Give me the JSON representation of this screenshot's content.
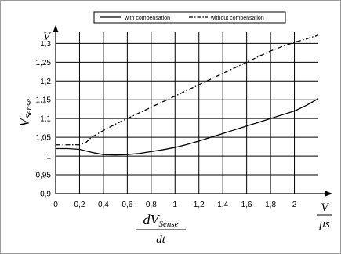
{
  "chart_data": {
    "type": "line",
    "title": "",
    "xlabel": {
      "numerator_base": "dV",
      "numerator_sub": "Sense",
      "denominator": "dt"
    },
    "ylabel": {
      "base": "V",
      "sub": "Sense"
    },
    "x_unit": {
      "numerator": "V",
      "denominator": "μs"
    },
    "y_unit": "V",
    "xlim": [
      0,
      2.2
    ],
    "ylim": [
      0.9,
      1.33
    ],
    "x_ticks": [
      {
        "value": 0,
        "label": "0"
      },
      {
        "value": 0.2,
        "label": "0,2"
      },
      {
        "value": 0.4,
        "label": "0,4"
      },
      {
        "value": 0.6,
        "label": "0,6"
      },
      {
        "value": 0.8,
        "label": "0,8"
      },
      {
        "value": 1.0,
        "label": "1"
      },
      {
        "value": 1.2,
        "label": "1,2"
      },
      {
        "value": 1.4,
        "label": "1,4"
      },
      {
        "value": 1.6,
        "label": "1,6"
      },
      {
        "value": 1.8,
        "label": "1,8"
      },
      {
        "value": 2.0,
        "label": "2"
      }
    ],
    "y_ticks": [
      {
        "value": 0.9,
        "label": "0,9"
      },
      {
        "value": 0.95,
        "label": "0,95"
      },
      {
        "value": 1.0,
        "label": "1"
      },
      {
        "value": 1.05,
        "label": "1,05"
      },
      {
        "value": 1.1,
        "label": "1,1"
      },
      {
        "value": 1.15,
        "label": "1,15"
      },
      {
        "value": 1.2,
        "label": "1,2"
      },
      {
        "value": 1.25,
        "label": "1,25"
      },
      {
        "value": 1.3,
        "label": "1,3"
      }
    ],
    "grid": true,
    "legend_position": "top",
    "series": [
      {
        "name": "with compensation",
        "style": "solid",
        "color": "#000000",
        "x": [
          0,
          0.1,
          0.2,
          0.3,
          0.4,
          0.5,
          0.6,
          0.7,
          0.8,
          0.9,
          1.0,
          1.1,
          1.2,
          1.3,
          1.4,
          1.5,
          1.6,
          1.7,
          1.8,
          1.9,
          2.0,
          2.1,
          2.2
        ],
        "y": [
          1.02,
          1.02,
          1.018,
          1.01,
          1.004,
          1.003,
          1.004,
          1.007,
          1.012,
          1.017,
          1.023,
          1.031,
          1.04,
          1.05,
          1.06,
          1.07,
          1.08,
          1.09,
          1.1,
          1.11,
          1.12,
          1.135,
          1.153
        ]
      },
      {
        "name": "without compensation",
        "style": "dashdot",
        "color": "#000000",
        "x": [
          0,
          0.1,
          0.2,
          0.25,
          0.3,
          0.4,
          0.5,
          0.6,
          0.7,
          0.8,
          0.9,
          1.0,
          1.1,
          1.2,
          1.3,
          1.4,
          1.5,
          1.6,
          1.7,
          1.8,
          1.9,
          2.0,
          2.1,
          2.2
        ],
        "y": [
          1.03,
          1.03,
          1.03,
          1.035,
          1.05,
          1.068,
          1.085,
          1.1,
          1.115,
          1.13,
          1.145,
          1.16,
          1.175,
          1.19,
          1.205,
          1.22,
          1.235,
          1.25,
          1.265,
          1.28,
          1.292,
          1.303,
          1.312,
          1.322
        ]
      }
    ]
  }
}
